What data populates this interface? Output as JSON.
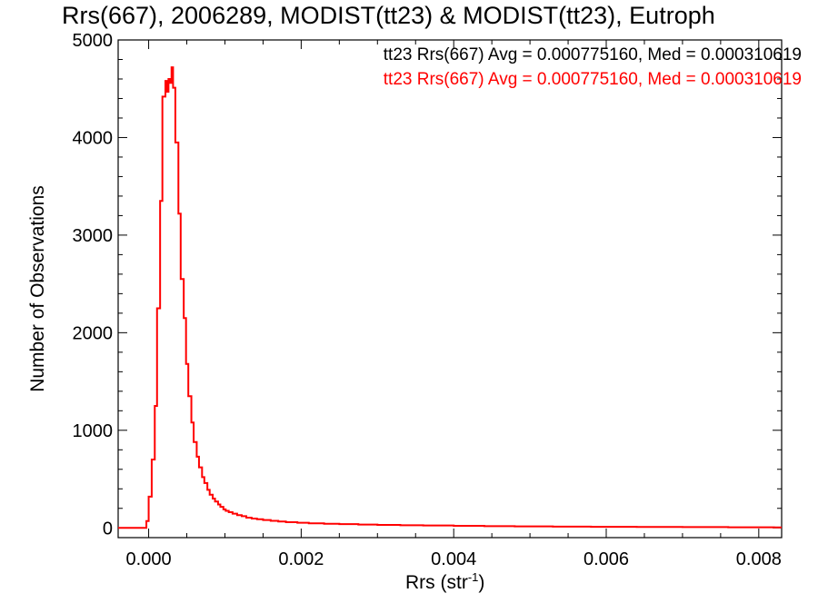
{
  "chart_data": {
    "type": "histogram",
    "title": "Rrs(667), 2006289, MODIST(tt23) & MODIST(tt23), Eutroph",
    "xlabel": "Rrs (str",
    "xlabel_sup": "-1",
    "xlabel_close": ")",
    "ylabel": "Number of Observations",
    "xlim": [
      -0.0004,
      0.0083
    ],
    "ylim": [
      -100,
      5000
    ],
    "x_ticks": [
      {
        "value": 0.0,
        "label": "0.000"
      },
      {
        "value": 0.002,
        "label": "0.002"
      },
      {
        "value": 0.004,
        "label": "0.004"
      },
      {
        "value": 0.006,
        "label": "0.006"
      },
      {
        "value": 0.008,
        "label": "0.008"
      }
    ],
    "y_ticks": [
      {
        "value": 0,
        "label": "0"
      },
      {
        "value": 1000,
        "label": "1000"
      },
      {
        "value": 2000,
        "label": "2000"
      },
      {
        "value": 3000,
        "label": "3000"
      },
      {
        "value": 4000,
        "label": "4000"
      },
      {
        "value": 5000,
        "label": "5000"
      }
    ],
    "legend": [
      {
        "text": "tt23 Rrs(667) Avg = 0.000775160, Med = 0.000310619",
        "color": "#000000"
      },
      {
        "text": "tt23 Rrs(667) Avg = 0.000775160, Med = 0.000310619",
        "color": "#ff0000"
      }
    ],
    "series": [
      {
        "color": "#ff0000",
        "points": [
          [
            -0.0004,
            0
          ],
          [
            -3e-05,
            0
          ],
          [
            -3e-05,
            70
          ],
          [
            0.0,
            70
          ],
          [
            0.0,
            320
          ],
          [
            4e-05,
            320
          ],
          [
            4e-05,
            700
          ],
          [
            8e-05,
            700
          ],
          [
            8e-05,
            1250
          ],
          [
            0.00011,
            1250
          ],
          [
            0.00011,
            2250
          ],
          [
            0.00015,
            2250
          ],
          [
            0.00015,
            3350
          ],
          [
            0.00018,
            3350
          ],
          [
            0.00018,
            4420
          ],
          [
            0.00022,
            4420
          ],
          [
            0.00022,
            4580
          ],
          [
            0.00024,
            4580
          ],
          [
            0.00024,
            4470
          ],
          [
            0.00026,
            4470
          ],
          [
            0.00026,
            4600
          ],
          [
            0.00028,
            4600
          ],
          [
            0.00028,
            4560
          ],
          [
            0.0003,
            4560
          ],
          [
            0.0003,
            4720
          ],
          [
            0.00032,
            4720
          ],
          [
            0.00032,
            4510
          ],
          [
            0.00035,
            4510
          ],
          [
            0.00035,
            3950
          ],
          [
            0.00039,
            3950
          ],
          [
            0.00039,
            3220
          ],
          [
            0.00042,
            3220
          ],
          [
            0.00042,
            2550
          ],
          [
            0.00046,
            2550
          ],
          [
            0.00046,
            2150
          ],
          [
            0.00049,
            2150
          ],
          [
            0.00049,
            1680
          ],
          [
            0.00052,
            1680
          ],
          [
            0.00052,
            1350
          ],
          [
            0.00056,
            1350
          ],
          [
            0.00056,
            1080
          ],
          [
            0.00059,
            1080
          ],
          [
            0.00059,
            880
          ],
          [
            0.00063,
            880
          ],
          [
            0.00063,
            730
          ],
          [
            0.00066,
            730
          ],
          [
            0.00066,
            620
          ],
          [
            0.0007,
            620
          ],
          [
            0.0007,
            520
          ],
          [
            0.00073,
            520
          ],
          [
            0.00073,
            460
          ],
          [
            0.00077,
            460
          ],
          [
            0.00077,
            390
          ],
          [
            0.0008,
            390
          ],
          [
            0.0008,
            340
          ],
          [
            0.00084,
            340
          ],
          [
            0.00084,
            300
          ],
          [
            0.00087,
            300
          ],
          [
            0.00087,
            270
          ],
          [
            0.00091,
            270
          ],
          [
            0.00091,
            240
          ],
          [
            0.00094,
            240
          ],
          [
            0.00094,
            215
          ],
          [
            0.00098,
            215
          ],
          [
            0.00098,
            190
          ],
          [
            0.00101,
            190
          ],
          [
            0.00101,
            175
          ],
          [
            0.00105,
            175
          ],
          [
            0.00105,
            160
          ],
          [
            0.0011,
            160
          ],
          [
            0.0011,
            145
          ],
          [
            0.00116,
            145
          ],
          [
            0.00116,
            130
          ],
          [
            0.00122,
            130
          ],
          [
            0.00122,
            120
          ],
          [
            0.00128,
            120
          ],
          [
            0.00128,
            105
          ],
          [
            0.00135,
            105
          ],
          [
            0.00135,
            95
          ],
          [
            0.00142,
            95
          ],
          [
            0.00142,
            88
          ],
          [
            0.0015,
            88
          ],
          [
            0.0015,
            80
          ],
          [
            0.0016,
            80
          ],
          [
            0.0016,
            72
          ],
          [
            0.0017,
            72
          ],
          [
            0.0017,
            65
          ],
          [
            0.0018,
            65
          ],
          [
            0.0018,
            58
          ],
          [
            0.00195,
            58
          ],
          [
            0.00195,
            52
          ],
          [
            0.0021,
            52
          ],
          [
            0.0021,
            47
          ],
          [
            0.0023,
            47
          ],
          [
            0.0023,
            42
          ],
          [
            0.0025,
            42
          ],
          [
            0.0025,
            38
          ],
          [
            0.00275,
            38
          ],
          [
            0.00275,
            34
          ],
          [
            0.003,
            34
          ],
          [
            0.003,
            30
          ],
          [
            0.0033,
            30
          ],
          [
            0.0033,
            27
          ],
          [
            0.0036,
            27
          ],
          [
            0.0036,
            24
          ],
          [
            0.004,
            24
          ],
          [
            0.004,
            21
          ],
          [
            0.0044,
            21
          ],
          [
            0.0044,
            18
          ],
          [
            0.0048,
            18
          ],
          [
            0.0048,
            15
          ],
          [
            0.0053,
            15
          ],
          [
            0.0053,
            13
          ],
          [
            0.0058,
            13
          ],
          [
            0.0058,
            11
          ],
          [
            0.0064,
            11
          ],
          [
            0.0064,
            9
          ],
          [
            0.007,
            9
          ],
          [
            0.007,
            8
          ],
          [
            0.0076,
            8
          ],
          [
            0.0076,
            6
          ],
          [
            0.0082,
            6
          ],
          [
            0.0082,
            5
          ],
          [
            0.0083,
            5
          ]
        ]
      }
    ]
  }
}
